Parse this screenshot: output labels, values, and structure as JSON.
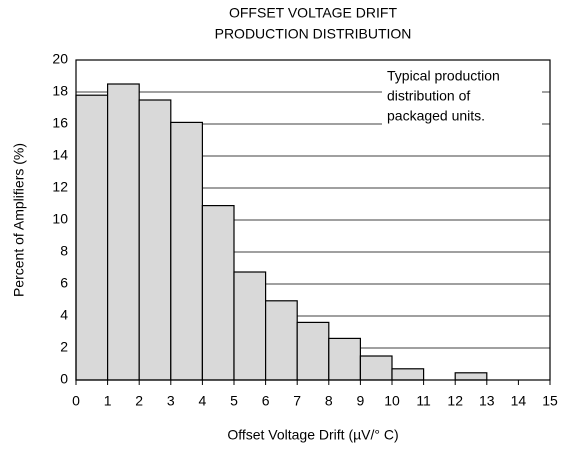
{
  "chart_data": {
    "type": "histogram",
    "title": [
      "OFFSET VOLTAGE DRIFT",
      "PRODUCTION DISTRIBUTION"
    ],
    "xlabel": "Offset Voltage Drift (µV/° C)",
    "ylabel": "Percent of Amplifiers (%)",
    "annotation": [
      "Typical production",
      "distribution of",
      "packaged units."
    ],
    "bins": [
      0,
      1,
      2,
      3,
      4,
      5,
      6,
      7,
      8,
      9,
      10,
      11,
      12,
      13,
      14,
      15
    ],
    "values": [
      17.8,
      18.5,
      17.5,
      16.1,
      10.9,
      6.75,
      4.95,
      3.6,
      2.6,
      1.5,
      0.7,
      0,
      0.45,
      0,
      0
    ],
    "color": "#d9d9d9",
    "xlim": [
      0,
      15
    ],
    "xticks": [
      0,
      1,
      2,
      3,
      4,
      5,
      6,
      7,
      8,
      9,
      10,
      11,
      12,
      13,
      14,
      15
    ],
    "ylim": [
      0,
      20
    ],
    "yticks": [
      0,
      2,
      4,
      6,
      8,
      10,
      12,
      14,
      16,
      18,
      20
    ],
    "grid": true
  }
}
